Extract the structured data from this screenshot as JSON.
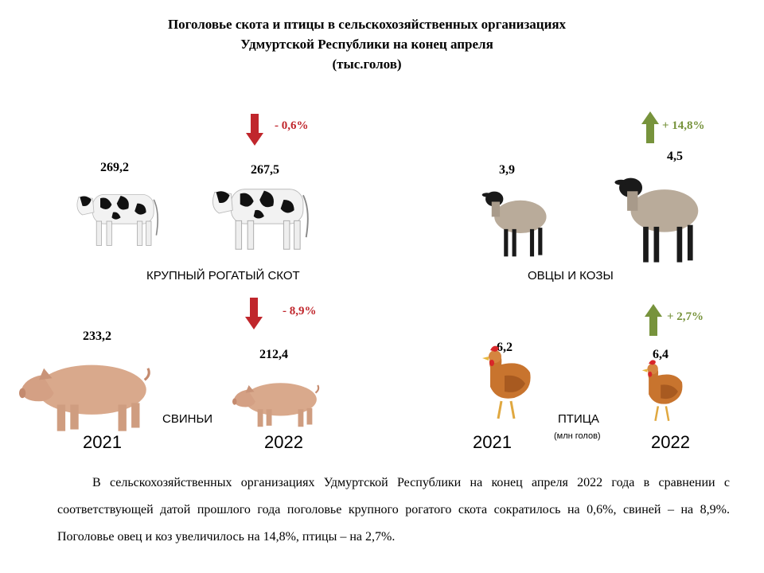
{
  "title": {
    "line1": "Поголовье скота и птицы  в сельскохозяйственных  организациях",
    "line2": "Удмуртской  Республики на конец апреля",
    "line3": "(тыс.голов)"
  },
  "chart_data": [
    {
      "type": "pictogram",
      "category": "КРУПНЫЙ РОГАТЫЙ СКОТ",
      "years": [
        "2021",
        "2022"
      ],
      "values": [
        269.2,
        267.5
      ],
      "value_labels": [
        "269,2",
        "267,5"
      ],
      "change_label": "- 0,6%",
      "direction": "down"
    },
    {
      "type": "pictogram",
      "category": "ОВЦЫ И КОЗЫ",
      "years": [
        "2021",
        "2022"
      ],
      "values": [
        3.9,
        4.5
      ],
      "value_labels": [
        "3,9",
        "4,5"
      ],
      "change_label": "+ 14,8%",
      "direction": "up"
    },
    {
      "type": "pictogram",
      "category": "СВИНЬИ",
      "years": [
        "2021",
        "2022"
      ],
      "values": [
        233.2,
        212.4
      ],
      "value_labels": [
        "233,2",
        "212,4"
      ],
      "change_label": "- 8,9%",
      "direction": "down"
    },
    {
      "type": "pictogram",
      "category": "ПТИЦА",
      "unit": "(млн голов)",
      "years": [
        "2021",
        "2022"
      ],
      "values": [
        6.2,
        6.4
      ],
      "value_labels": [
        "6,2",
        "6,4"
      ],
      "change_label": "+ 2,7%",
      "direction": "up"
    }
  ],
  "years": {
    "left_a": "2021",
    "left_b": "2022",
    "right_a": "2021",
    "right_b": "2022"
  },
  "colors": {
    "down_arrow": "#c0262c",
    "up_arrow": "#77933c"
  },
  "icons": [
    "cow-icon",
    "sheep-icon",
    "pig-icon",
    "chicken-icon",
    "down-arrow-icon",
    "up-arrow-icon"
  ],
  "paragraph": "В сельскохозяйственных организациях Удмуртской Республики на конец апреля 2022 года в сравнении с соответствующей датой прошлого года поголовье крупного рогатого скота сократилось на 0,6%, свиней – на 8,9%. Поголовье овец и коз увеличилось на 14,8%, птицы – на 2,7%."
}
